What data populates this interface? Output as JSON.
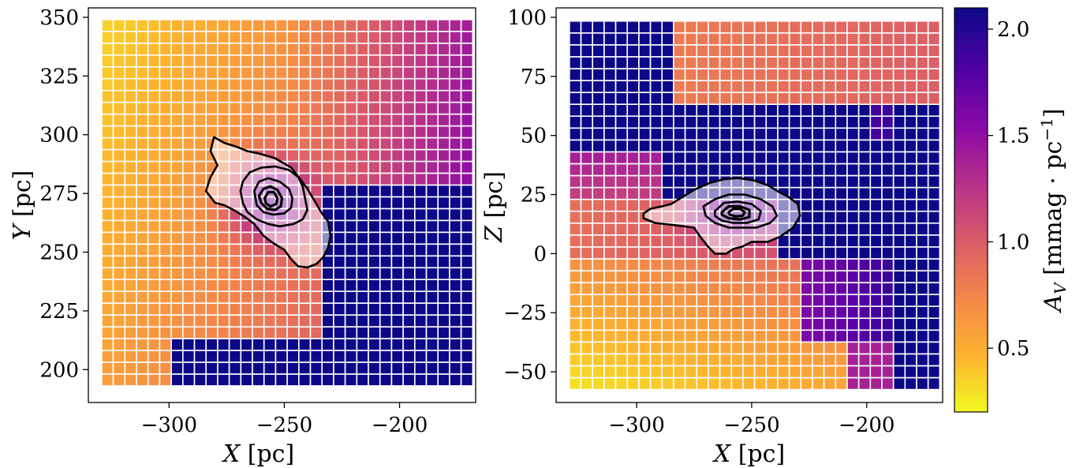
{
  "chart_data": [
    {
      "type": "heatmap",
      "panel": "XY",
      "xlabel": "X [pc]",
      "ylabel": "Y [pc]",
      "xlim": [
        -335,
        -167
      ],
      "ylim": [
        186,
        354
      ],
      "x_ticks": [
        -300,
        -250,
        -200
      ],
      "x_tick_labels": [
        "−300",
        "−250",
        "−200"
      ],
      "y_ticks": [
        200,
        225,
        250,
        275,
        300,
        325,
        350
      ],
      "y_tick_labels": [
        "200",
        "225",
        "250",
        "275",
        "300",
        "325",
        "350"
      ],
      "grid_x": {
        "start": -326.7,
        "step": 5.03,
        "count": 32
      },
      "grid_y": {
        "start": 195.6,
        "step": 5.03,
        "count": 31
      },
      "extinction_regions": [
        {
          "label": "low (upper-left)",
          "av_min": 0.45,
          "av_max": 0.9
        },
        {
          "label": "high (right / lower-right)",
          "av": 2.1
        }
      ],
      "contours": [
        {
          "level": 1,
          "path": [
            [
              -280.5,
              299
            ],
            [
              -276,
              296.5
            ],
            [
              -271,
              295
            ],
            [
              -266,
              293
            ],
            [
              -261,
              292
            ],
            [
              -254,
              290
            ],
            [
              -247,
              286
            ],
            [
              -243,
              281
            ],
            [
              -240,
              277
            ],
            [
              -237,
              272
            ],
            [
              -234,
              267
            ],
            [
              -231,
              263
            ],
            [
              -230,
              257
            ],
            [
              -231,
              252
            ],
            [
              -233,
              248
            ],
            [
              -236,
              245
            ],
            [
              -240,
              243.5
            ],
            [
              -244,
              244
            ],
            [
              -247,
              247
            ],
            [
              -250,
              251
            ],
            [
              -255,
              254
            ],
            [
              -259,
              257
            ],
            [
              -263,
              262
            ],
            [
              -267,
              265
            ],
            [
              -272,
              268
            ],
            [
              -276,
              270
            ],
            [
              -280,
              271
            ],
            [
              -284,
              276
            ],
            [
              -282,
              282
            ],
            [
              -279,
              287
            ],
            [
              -282,
              293
            ],
            [
              -280.5,
              299
            ]
          ]
        },
        {
          "level": 2,
          "path": [
            [
              -260,
              286
            ],
            [
              -254,
              286.5
            ],
            [
              -248,
              285
            ],
            [
              -244,
              282
            ],
            [
              -242,
              278
            ],
            [
              -241,
              273
            ],
            [
              -240,
              268
            ],
            [
              -242,
              264
            ],
            [
              -246,
              262
            ],
            [
              -252,
              261
            ],
            [
              -257,
              262
            ],
            [
              -262,
              264
            ],
            [
              -266,
              267
            ],
            [
              -268,
              271
            ],
            [
              -269,
              276
            ],
            [
              -268,
              280
            ],
            [
              -265,
              284
            ],
            [
              -260,
              286
            ]
          ]
        },
        {
          "level": 3,
          "path": [
            [
              -263,
              276
            ],
            [
              -261,
              280
            ],
            [
              -257,
              281.5
            ],
            [
              -252,
              280
            ],
            [
              -248,
              277
            ],
            [
              -246.5,
              273
            ],
            [
              -247,
              269
            ],
            [
              -250,
              266.5
            ],
            [
              -255,
              266
            ],
            [
              -259,
              267
            ],
            [
              -262,
              270
            ],
            [
              -263,
              276
            ]
          ]
        },
        {
          "level": 4,
          "path": [
            [
              -261,
              274
            ],
            [
              -259,
              277
            ],
            [
              -256,
              278
            ],
            [
              -253,
              276.5
            ],
            [
              -251,
              273
            ],
            [
              -251.5,
              269.5
            ],
            [
              -254,
              268
            ],
            [
              -257.5,
              268.5
            ],
            [
              -260,
              271
            ],
            [
              -261,
              274
            ]
          ]
        },
        {
          "level": 5,
          "path": [
            [
              -258.5,
              273
            ],
            [
              -257,
              275.5
            ],
            [
              -254.5,
              275.5
            ],
            [
              -253,
              273
            ],
            [
              -253.5,
              270.5
            ],
            [
              -256,
              269.5
            ],
            [
              -258,
              270.8
            ],
            [
              -258.5,
              273
            ]
          ]
        }
      ]
    },
    {
      "type": "heatmap",
      "panel": "XZ",
      "xlabel": "X [pc]",
      "ylabel": "Z [pc]",
      "xlim": [
        -335,
        -167
      ],
      "ylim": [
        -63,
        104
      ],
      "x_ticks": [
        -300,
        -250,
        -200
      ],
      "x_tick_labels": [
        "−300",
        "−250",
        "−200"
      ],
      "y_ticks": [
        -50,
        -25,
        0,
        25,
        50,
        75,
        100
      ],
      "y_tick_labels": [
        "−50",
        "−25",
        "0",
        "25",
        "50",
        "75",
        "100"
      ],
      "grid_x": {
        "start": -326.7,
        "step": 5.03,
        "count": 32
      },
      "grid_y": {
        "start": -55,
        "step": 5.03,
        "count": 31
      },
      "extinction_regions": [
        {
          "label": "high band (upper-left / middle)",
          "av": 2.1
        },
        {
          "label": "moderate (lower / upper-right)",
          "av_min": 0.25,
          "av_max": 0.9
        }
      ],
      "contours": [
        {
          "level": 1,
          "path": [
            [
              -297,
              17
            ],
            [
              -294,
              19
            ],
            [
              -289,
              20
            ],
            [
              -285,
              21
            ],
            [
              -280,
              24
            ],
            [
              -275,
              27
            ],
            [
              -268,
              30
            ],
            [
              -262,
              31.5
            ],
            [
              -256,
              32
            ],
            [
              -249,
              31
            ],
            [
              -243,
              29
            ],
            [
              -238,
              26
            ],
            [
              -234,
              24
            ],
            [
              -230,
              21
            ],
            [
              -229,
              16
            ],
            [
              -232,
              11
            ],
            [
              -238,
              7
            ],
            [
              -243,
              5
            ],
            [
              -250,
              5
            ],
            [
              -254,
              3
            ],
            [
              -258,
              2
            ],
            [
              -261,
              0
            ],
            [
              -266,
              0
            ],
            [
              -269,
              3
            ],
            [
              -273,
              8
            ],
            [
              -275,
              11
            ],
            [
              -283,
              12
            ],
            [
              -292,
              13
            ],
            [
              -297,
              15
            ],
            [
              -297,
              17
            ]
          ]
        },
        {
          "level": 2,
          "path": [
            [
              -271,
              20
            ],
            [
              -266,
              23
            ],
            [
              -260,
              25
            ],
            [
              -253,
              25
            ],
            [
              -246,
              23
            ],
            [
              -241,
              20
            ],
            [
              -239,
              16
            ],
            [
              -242,
              13
            ],
            [
              -248,
              11
            ],
            [
              -254,
              11
            ],
            [
              -260,
              11
            ],
            [
              -266,
              13
            ],
            [
              -270,
              16
            ],
            [
              -271,
              20
            ]
          ]
        },
        {
          "level": 3,
          "path": [
            [
              -266,
              18
            ],
            [
              -262,
              21.5
            ],
            [
              -256,
              22
            ],
            [
              -250,
              21
            ],
            [
              -246,
              18
            ],
            [
              -247,
              14.5
            ],
            [
              -252,
              13
            ],
            [
              -258,
              13
            ],
            [
              -263,
              14
            ],
            [
              -266,
              16
            ],
            [
              -266,
              18
            ]
          ]
        },
        {
          "level": 4,
          "path": [
            [
              -263,
              17.5
            ],
            [
              -260,
              20
            ],
            [
              -255,
              20
            ],
            [
              -251,
              18.5
            ],
            [
              -251,
              15.5
            ],
            [
              -255,
              14.5
            ],
            [
              -260,
              15
            ],
            [
              -263,
              16.5
            ],
            [
              -263,
              17.5
            ]
          ]
        },
        {
          "level": 5,
          "path": [
            [
              -260,
              17.5
            ],
            [
              -258,
              19
            ],
            [
              -255,
              19
            ],
            [
              -253,
              17.5
            ],
            [
              -254,
              16
            ],
            [
              -257,
              15.8
            ],
            [
              -259.5,
              16.5
            ],
            [
              -260,
              17.5
            ]
          ]
        }
      ]
    }
  ],
  "colorbar": {
    "label_main": "A",
    "label_sub": "V",
    "label_units": "[mmag · pc",
    "label_exp": "−1",
    "label_close": "]",
    "range": [
      0.2,
      2.1
    ],
    "ticks": [
      0.5,
      1.0,
      1.5,
      2.0
    ],
    "tick_labels": [
      "0.5",
      "1.0",
      "1.5",
      "2.0"
    ],
    "colormap": "plasma_r",
    "colors": [
      "#f0f921",
      "#fdb32f",
      "#f48849",
      "#db5c68",
      "#b83289",
      "#8b0aa5",
      "#5302a3",
      "#0d0887"
    ]
  },
  "style": {
    "axis_color": "#000000",
    "cell_edge_color": "#ffffff",
    "contour_color": "#000000"
  }
}
